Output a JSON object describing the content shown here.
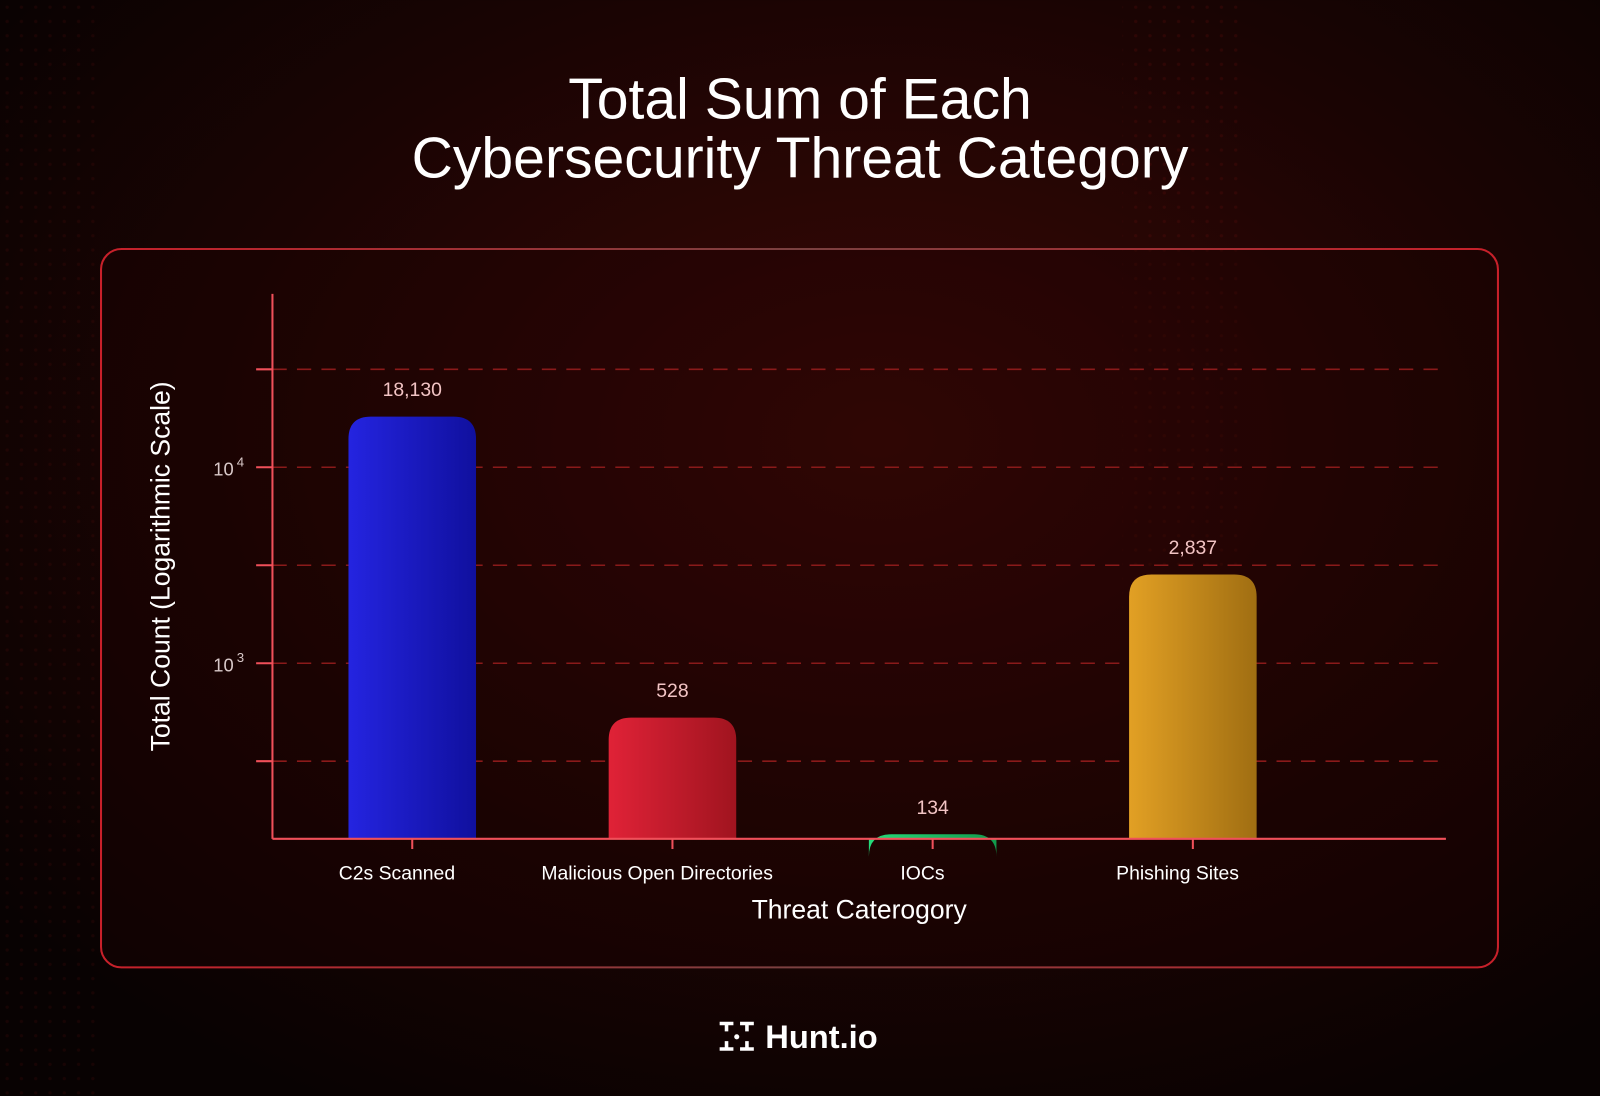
{
  "chart_data": {
    "type": "bar",
    "title": "Total Sum of Each Cybersecurity Threat Category",
    "title_lines": [
      "Total Sum of Each",
      "Cybersecurity Threat Category"
    ],
    "xlabel": "Threat Caterogory",
    "ylabel": "Total Count (Logarithmic Scale)",
    "yscale": "log",
    "ylim": [
      127,
      76700
    ],
    "y_ticks": [
      {
        "value": 1000,
        "base": "10",
        "exp": "3"
      },
      {
        "value": 10000,
        "base": "10",
        "exp": "4"
      }
    ],
    "grid": true,
    "categories": [
      "C2s Scanned",
      "Malicious Open Directories",
      "IOCs",
      "Phishing Sites"
    ],
    "values": [
      18130,
      528,
      134,
      2837
    ],
    "data_labels": [
      "18,130",
      "528",
      "134",
      "2,837"
    ],
    "colors": [
      [
        "#2424e0",
        "#10109e"
      ],
      [
        "#e02237",
        "#a0141f"
      ],
      [
        "#24dc7a",
        "#119a4c"
      ],
      [
        "#e2a024",
        "#a06e12"
      ]
    ],
    "axis_color": "#f0505a"
  },
  "brand": {
    "name": "Hunt.io",
    "icon": "hunt-logo-icon"
  }
}
